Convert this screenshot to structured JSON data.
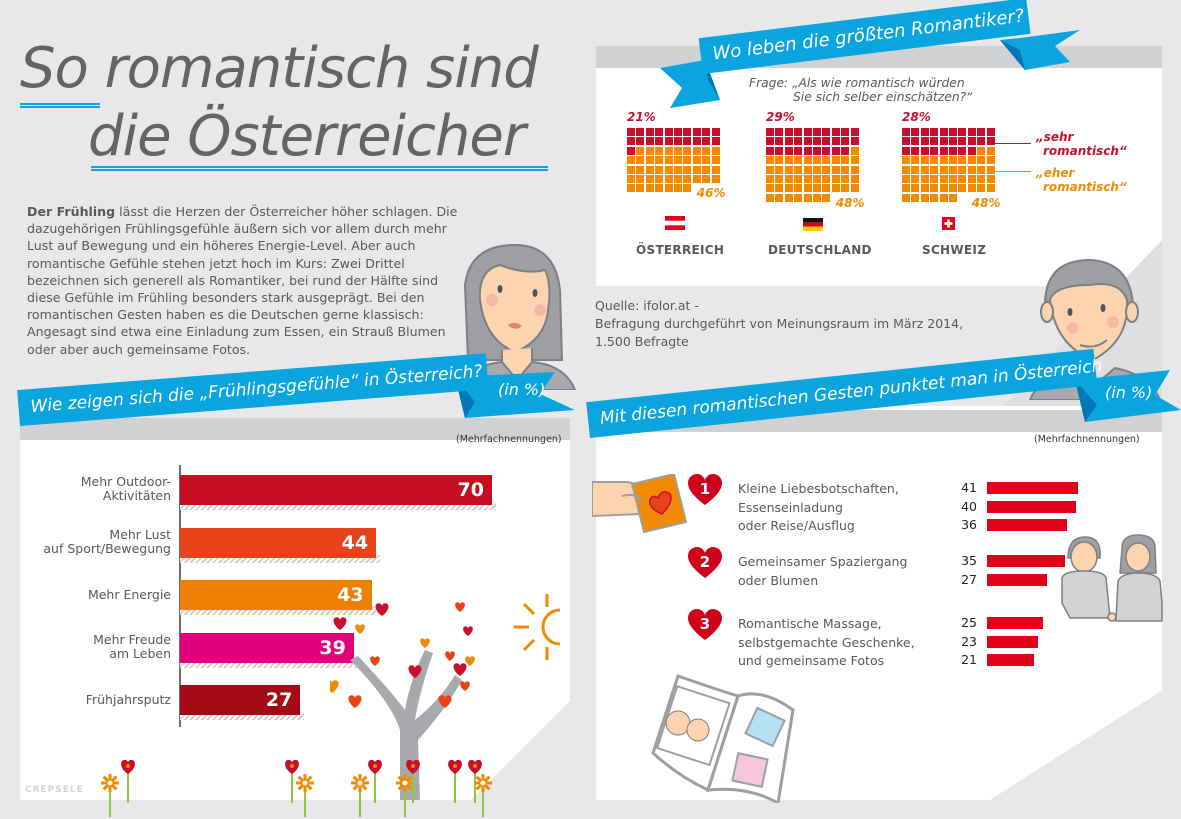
{
  "title": {
    "line1": "So romantisch sind",
    "line2": "die Österreicher"
  },
  "intro": {
    "lead": "Der Frühling",
    "text": " lässt die Herzen der Österreicher höher schlagen. Die dazugehörigen Frühlingsgefühle äußern sich vor allem durch mehr Lust auf Bewegung und ein höheres Energie-Level. Aber auch romantische Gefühle stehen jetzt hoch im Kurs: Zwei Drittel bezeichnen sich generell als Romantiker, bei rund der Hälfte sind diese Gefühle im Frühling besonders stark ausgeprägt. Bei den romantischen Gesten haben es die Deutschen gerne klassisch: Angesagt sind etwa eine Einladung zum Essen, ein Strauß Blumen oder aber auch gemeinsame Fotos."
  },
  "source": {
    "line1": "Quelle: ifolor.at -",
    "line2": "Befragung durchgeführt von Meinungsraum im März 2014,",
    "line3": "1.500 Befragte"
  },
  "colors": {
    "ribbon": "#0aa5de",
    "sehr": "#c8102e",
    "eher": "#f18a00",
    "bar_red": "#e2001a"
  },
  "logo": "CREPSELE",
  "chart_data": [
    {
      "type": "bar",
      "orientation": "horizontal",
      "title": "Wie zeigen sich die „Frühlingsgefühle“ in Österreich?",
      "unit_label": "(in %)",
      "note": "(Mehrfachnennungen)",
      "categories": [
        "Mehr Outdoor-\nAktivitäten",
        "Mehr Lust\nauf Sport/Bewegung",
        "Mehr Energie",
        "Mehr Freude\nam Leben",
        "Frühjahrsputz"
      ],
      "values": [
        70,
        44,
        43,
        39,
        27
      ],
      "bar_colors": [
        "#c50d1f",
        "#e84219",
        "#ee7f00",
        "#e2007a",
        "#a40b17"
      ],
      "xlim": [
        0,
        100
      ]
    },
    {
      "type": "waffle",
      "title": "Wo leben die größten Romantiker?",
      "question": "Frage: „Als wie romantisch würden Sie sich selber einschätzen?“",
      "legend": [
        "„sehr romantisch“",
        "„eher romantisch“"
      ],
      "countries": [
        {
          "name": "ÖSTERREICH",
          "flag": "austria-flag",
          "sehr": 21,
          "eher": 46,
          "sehr_label": "21%",
          "eher_label": "46%"
        },
        {
          "name": "DEUTSCHLAND",
          "flag": "germany-flag",
          "sehr": 29,
          "eher": 48,
          "sehr_label": "29%",
          "eher_label": "48%"
        },
        {
          "name": "SCHWEIZ",
          "flag": "switzerland-flag",
          "sehr": 28,
          "eher": 48,
          "sehr_label": "28%",
          "eher_label": "48%"
        }
      ]
    },
    {
      "type": "bar",
      "orientation": "horizontal",
      "title": "Mit diesen romantischen Gesten punktet man in Österreich",
      "unit_label": "(in %)",
      "note": "(Mehrfachnennungen)",
      "groups": [
        {
          "rank": "1",
          "items": [
            {
              "label": "Kleine Liebesbotschaften,",
              "value": 41
            },
            {
              "label": "Essenseinladung",
              "value": 40
            },
            {
              "label": "oder Reise/Ausflug",
              "value": 36
            }
          ]
        },
        {
          "rank": "2",
          "items": [
            {
              "label": "Gemeinsamer Spaziergang",
              "value": 35
            },
            {
              "label": "oder Blumen",
              "value": 27
            }
          ]
        },
        {
          "rank": "3",
          "items": [
            {
              "label": "Romantische Massage,",
              "value": 25
            },
            {
              "label": "selbstgemachte Geschenke,",
              "value": 23
            },
            {
              "label": "und gemeinsame Fotos",
              "value": 21
            }
          ]
        }
      ]
    }
  ]
}
